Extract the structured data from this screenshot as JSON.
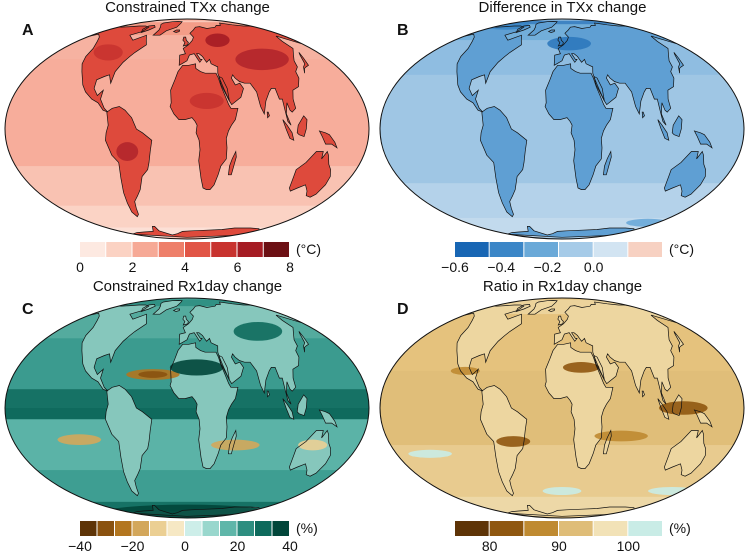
{
  "panels": [
    {
      "id": "a",
      "letter": "A",
      "title": "Constrained TXx change",
      "unit": "(°C)",
      "ticks": [
        "0",
        "2",
        "4",
        "6",
        "8"
      ],
      "ocean_color": "#f7ad9b",
      "land_color": "#de4a3c",
      "land_dark_color": "#b2262b",
      "colorbar": [
        "#fde9e1",
        "#fbd2c3",
        "#f6a996",
        "#ee7f6a",
        "#e15546",
        "#c8332f",
        "#a51c24",
        "#6c1014"
      ]
    },
    {
      "id": "b",
      "letter": "B",
      "title": "Difference in TXx change",
      "unit": "(°C)",
      "ticks": [
        "−0.6",
        "−0.4",
        "−0.2",
        "0.0"
      ],
      "ocean_color": "#9fc6e4",
      "land_color": "#5f9fd3",
      "land_dark_color": "#2e78bd",
      "colorbar": [
        "#1866b4",
        "#3b86c7",
        "#6aa9d8",
        "#a6cbe8",
        "#d2e4f2",
        "#f7d1c2"
      ]
    },
    {
      "id": "c",
      "letter": "C",
      "title": "Constrained Rx1day change",
      "unit": "(%)",
      "ticks": [
        "−40",
        "−20",
        "0",
        "20",
        "40"
      ],
      "ocean_color": "#45a197",
      "land_color": "#86c7bc",
      "land_dark_color": "#0f4f43",
      "colorbar": [
        "#5e3407",
        "#8a520f",
        "#b3761f",
        "#d3a75b",
        "#ebcf93",
        "#f6e8c4",
        "#cdeee9",
        "#99d7cd",
        "#5fb6a9",
        "#2e8e80",
        "#0e6a5c",
        "#01463a"
      ]
    },
    {
      "id": "d",
      "letter": "D",
      "title": "Ratio in Rx1day change",
      "unit": "(%)",
      "ticks": [
        "80",
        "90",
        "100"
      ],
      "ocean_color": "#e5c27d",
      "land_color": "#edd6a0",
      "land_dark_color": "#8f5710",
      "colorbar": [
        "#5e3407",
        "#8f5710",
        "#bf8a31",
        "#dfbd78",
        "#f2e2b7",
        "#c9ece6"
      ]
    }
  ]
}
